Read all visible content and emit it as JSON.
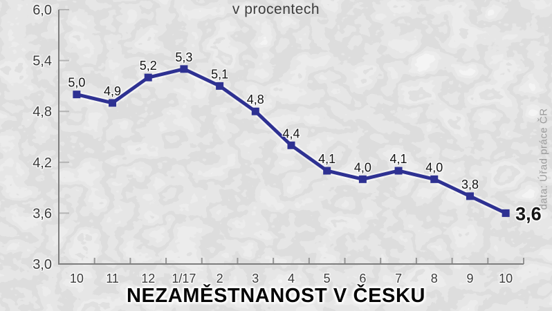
{
  "page": {
    "credit": "data: Úřad práce ČR",
    "background_hint": "faded grayscale crowd photo",
    "accent_color": "#2e3192"
  },
  "chart_data": {
    "type": "line",
    "title": "NEZAMĚSTNANOST V ČESKU",
    "subtitle": "v procentech",
    "categories": [
      "10",
      "11",
      "12",
      "1/17",
      "2",
      "3",
      "4",
      "5",
      "6",
      "7",
      "8",
      "9",
      "10"
    ],
    "values": [
      5.0,
      4.9,
      5.2,
      5.3,
      5.1,
      4.8,
      4.4,
      4.1,
      4.0,
      4.1,
      4.0,
      3.8,
      3.6
    ],
    "point_labels": [
      "5,0",
      "4,9",
      "5,2",
      "5,3",
      "5,1",
      "4,8",
      "4,4",
      "4,1",
      "4,0",
      "4,1",
      "4,0",
      "3,8",
      "3,6"
    ],
    "y_ticks": [
      3.0,
      3.6,
      4.2,
      4.8,
      5.4,
      6.0
    ],
    "y_tick_labels": [
      "3,0",
      "3,6",
      "4,2",
      "4,8",
      "5,4",
      "6,0"
    ],
    "ylim": [
      3.0,
      6.0
    ],
    "line_color": "#2e3192",
    "grid": false,
    "legend": "none",
    "last_label_emphasis": true,
    "source": "data: Úřad práce ČR"
  }
}
